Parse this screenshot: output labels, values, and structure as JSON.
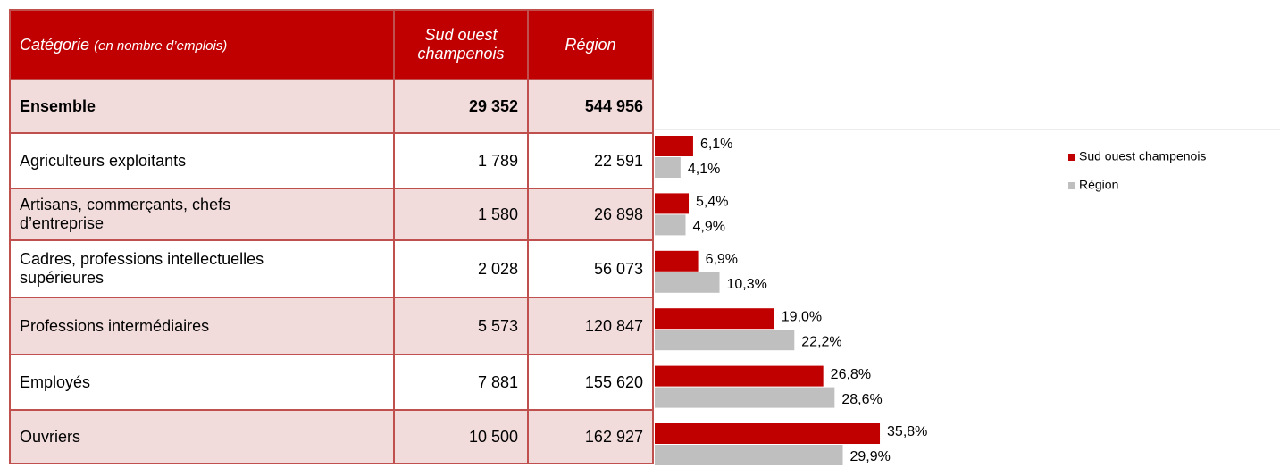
{
  "table": {
    "header": {
      "title": "Catégorie",
      "title_note": "(en nombre d’emplois)",
      "columns": [
        "Sud ouest champenois",
        "Région"
      ]
    },
    "total": [
      "Ensemble",
      "29 352",
      "544 956"
    ],
    "rows": [
      [
        "Agriculteurs exploitants",
        "1 789",
        "22 591"
      ],
      [
        "Artisans, commerçants, chefs d’entreprise",
        "1 580",
        "26 898"
      ],
      [
        "Cadres, professions intellectuelles supérieures",
        "2 028",
        "56 073"
      ],
      [
        "Professions intermédiaires",
        "5 573",
        "120 847"
      ],
      [
        "Employés",
        "7 881",
        "155 620"
      ],
      [
        "Ouvriers",
        "10 500",
        "162 927"
      ]
    ]
  },
  "chart_data": {
    "type": "bar",
    "orientation": "horizontal",
    "legend": "top-right",
    "series": [
      {
        "name": "Sud ouest champenois",
        "color": "#c00000",
        "values": [
          6.1,
          5.4,
          6.9,
          19.0,
          26.8,
          35.8
        ],
        "value_labels": [
          "6,1%",
          "5,4%",
          "6,9%",
          "19,0%",
          "26,8%",
          "35,8%"
        ]
      },
      {
        "name": "Région",
        "color": "#bfbfbf",
        "values": [
          4.1,
          4.9,
          10.3,
          22.2,
          28.6,
          29.9
        ],
        "value_labels": [
          "4,1%",
          "4,9%",
          "10,3%",
          "22,2%",
          "28,6%",
          "29,9%"
        ]
      }
    ]
  }
}
